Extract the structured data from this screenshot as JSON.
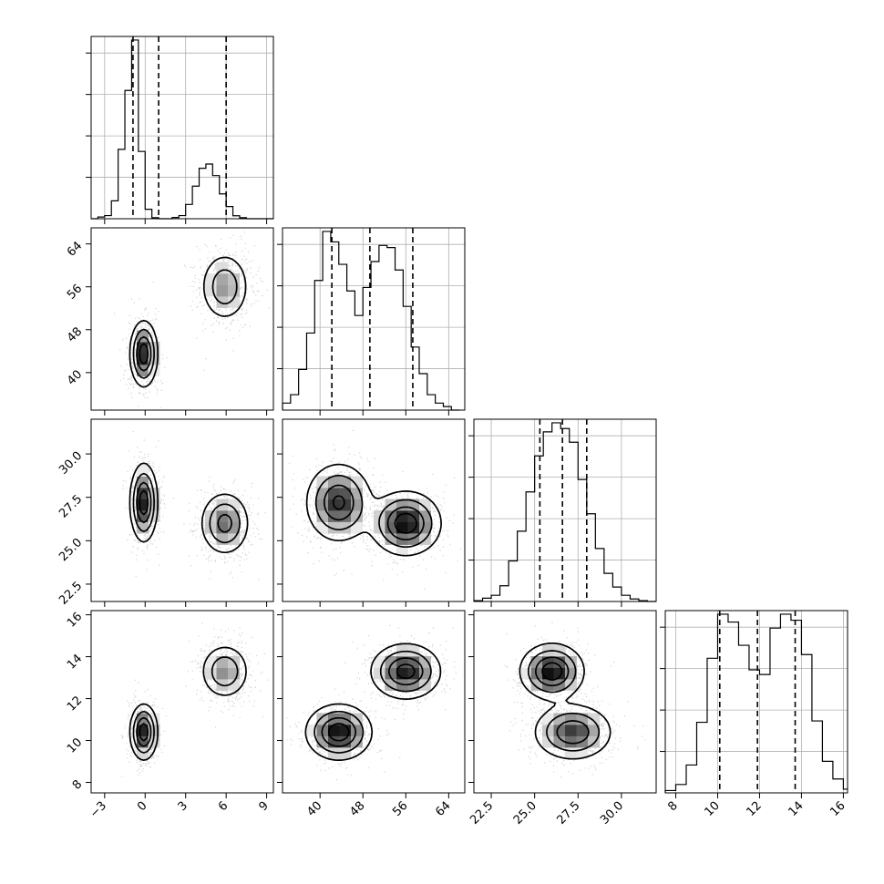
{
  "chart_data": {
    "type": "corner",
    "title": "",
    "n_params": 4,
    "quantile_lines": "dashed",
    "grid": true,
    "colors": {
      "line": "#000000",
      "grid": "#b0b0b0",
      "points": "#808080"
    },
    "params": [
      {
        "range": [
          -4,
          9.5
        ],
        "ticks": [
          -3,
          0,
          3,
          6,
          9
        ],
        "tick_labels": [
          "−3",
          "0",
          "3",
          "6",
          "9"
        ]
      },
      {
        "range": [
          33,
          67
        ],
        "ticks": [
          40,
          48,
          56,
          64
        ],
        "tick_labels": [
          "40",
          "48",
          "56",
          "64"
        ]
      },
      {
        "range": [
          21.5,
          32
        ],
        "ticks": [
          22.5,
          25.0,
          27.5,
          30.0
        ],
        "tick_labels": [
          "22.5",
          "25.0",
          "27.5",
          "30.0"
        ]
      },
      {
        "range": [
          7.5,
          16.2
        ],
        "ticks": [
          8,
          10,
          12,
          14,
          16
        ],
        "tick_labels": [
          "8",
          "10",
          "12",
          "14",
          "16"
        ]
      }
    ],
    "clusters": [
      {
        "weight": 0.5,
        "mean": [
          -0.1,
          43.5,
          27.2,
          10.4
        ],
        "sd": [
          0.5,
          3.0,
          1.1,
          0.65
        ]
      },
      {
        "weight": 0.5,
        "mean": [
          5.9,
          56.0,
          26.0,
          13.3
        ],
        "sd": [
          0.9,
          3.2,
          0.9,
          0.65
        ]
      }
    ],
    "histograms": [
      {
        "param": 0,
        "bins": [
          -4,
          -3.5,
          -3,
          -2.5,
          -2,
          -1.5,
          -1,
          -0.5,
          0,
          0.5,
          1,
          1.5,
          2,
          2.5,
          3,
          3.5,
          4,
          4.5,
          5,
          5.5,
          6,
          6.5,
          7,
          7.5,
          8,
          8.5,
          9,
          9.5
        ],
        "counts": [
          0,
          8,
          15,
          85,
          330,
          610,
          850,
          320,
          45,
          5,
          0,
          0,
          6,
          15,
          68,
          155,
          240,
          260,
          205,
          118,
          58,
          14,
          5,
          0,
          0,
          0,
          0
        ],
        "quantiles": [
          -0.9,
          1.0,
          6.0
        ]
      },
      {
        "param": 1,
        "bins": [
          33,
          34.5,
          36,
          37.5,
          39,
          40.5,
          42,
          43.5,
          45,
          46.5,
          48,
          49.5,
          51,
          52.5,
          54,
          55.5,
          57,
          58.5,
          60,
          61.5,
          63,
          64.5,
          66
        ],
        "counts": [
          10,
          22,
          58,
          110,
          185,
          255,
          240,
          208,
          170,
          135,
          175,
          212,
          235,
          232,
          200,
          148,
          90,
          52,
          22,
          10,
          5,
          0
        ],
        "quantiles": [
          42.2,
          49.3,
          57.3
        ]
      },
      {
        "param": 2,
        "bins": [
          21.5,
          22.0,
          22.5,
          23.0,
          23.5,
          24.0,
          24.5,
          25.0,
          25.5,
          26.0,
          26.5,
          27.0,
          27.5,
          28.0,
          28.5,
          29.0,
          29.5,
          30.0,
          30.5,
          31.0,
          31.5,
          32.0
        ],
        "counts": [
          2,
          8,
          15,
          38,
          98,
          170,
          265,
          352,
          410,
          432,
          418,
          385,
          295,
          212,
          128,
          68,
          35,
          15,
          6,
          2,
          0
        ],
        "quantiles": [
          25.3,
          26.6,
          28.0
        ]
      },
      {
        "param": 3,
        "bins": [
          7.5,
          8.0,
          8.5,
          9.0,
          9.5,
          10.0,
          10.5,
          11.0,
          11.5,
          12.0,
          12.5,
          13.0,
          13.5,
          14.0,
          14.5,
          15.0,
          15.5,
          16.0,
          16.2
        ],
        "counts": [
          5,
          18,
          60,
          152,
          290,
          385,
          368,
          318,
          265,
          255,
          355,
          385,
          372,
          298,
          155,
          68,
          30,
          8
        ],
        "quantiles": [
          10.1,
          11.9,
          13.7
        ]
      }
    ],
    "contour_levels": [
      0.5,
      1.0,
      1.5,
      2.0
    ]
  }
}
